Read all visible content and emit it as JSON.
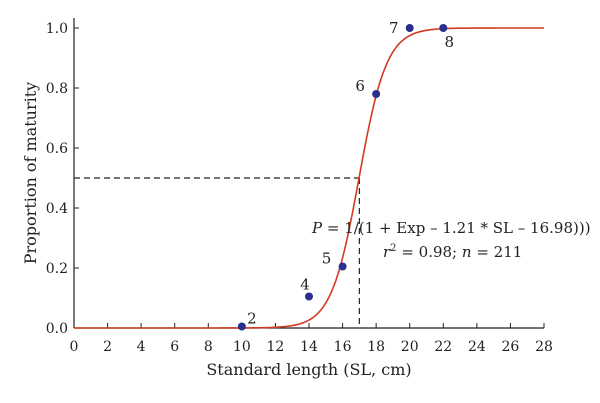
{
  "chart_data": {
    "type": "scatter",
    "xlabel": "Standard length (SL, cm)",
    "ylabel": "Proportion of maturity",
    "xlim": [
      0,
      28
    ],
    "ylim": [
      0,
      1.0
    ],
    "x_ticks": [
      0,
      2,
      4,
      6,
      8,
      10,
      12,
      14,
      16,
      18,
      20,
      22,
      24,
      26,
      28
    ],
    "y_ticks": [
      "0.0",
      "0.2",
      "0.4",
      "0.6",
      "0.8",
      "1.0"
    ],
    "grid": false,
    "series": [
      {
        "type": "scatter",
        "marker_color": "#2b2f8f",
        "points": [
          {
            "x": 10,
            "y": 0.005,
            "label": "2"
          },
          {
            "x": 14,
            "y": 0.105,
            "label": "4"
          },
          {
            "x": 16,
            "y": 0.205,
            "label": "5"
          },
          {
            "x": 18,
            "y": 0.78,
            "label": "6"
          },
          {
            "x": 20,
            "y": 1.0,
            "label": "7"
          },
          {
            "x": 22,
            "y": 1.0,
            "label": "8"
          }
        ]
      },
      {
        "type": "line",
        "line_color": "#d13b1f",
        "logistic": {
          "slope": 1.21,
          "midpoint": 16.98
        }
      }
    ],
    "reference_lines": {
      "x": 17.0,
      "y": 0.5,
      "style": "dashed"
    },
    "annotation": {
      "equation_var": "P",
      "equation_rest": " = 1/(1 + Exp – 1.21 * SL – 16.98)))",
      "stats_r": "r",
      "stats_sup": "2",
      "stats_mid": " = 0.98; ",
      "stats_n": "n",
      "stats_end": " = 211"
    }
  }
}
